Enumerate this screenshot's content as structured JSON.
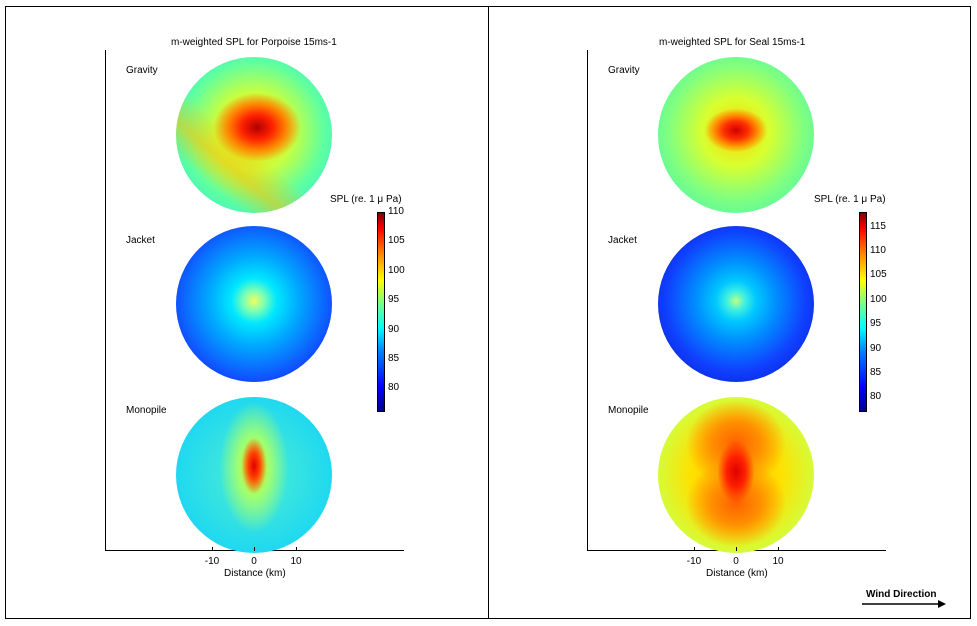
{
  "chart_data": [
    {
      "type": "heatmap",
      "title": "m-weighted SPL for Porpoise 15ms-1",
      "rows": [
        "Gravity",
        "Jacket",
        "Monopile"
      ],
      "xlabel": "Distance (km)",
      "xticks": [
        "-10",
        "0",
        "10"
      ],
      "colorbar": {
        "label": "SPL (re. 1 μ Pa)",
        "range": [
          76,
          110
        ],
        "ticks": [
          80,
          85,
          90,
          95,
          100,
          105,
          110
        ]
      },
      "peak_levels": {
        "Gravity": 108,
        "Jacket": 96,
        "Monopile": 106
      }
    },
    {
      "type": "heatmap",
      "title": "m-weighted SPL for Seal 15ms-1",
      "rows": [
        "Gravity",
        "Jacket",
        "Monopile"
      ],
      "xlabel": "Distance (km)",
      "xticks": [
        "-10",
        "0",
        "10"
      ],
      "colorbar": {
        "label": "SPL (re. 1 μ Pa)",
        "range": [
          77,
          118
        ],
        "ticks": [
          80,
          85,
          90,
          95,
          100,
          105,
          110,
          115
        ]
      },
      "peak_levels": {
        "Gravity": 110,
        "Jacket": 92,
        "Monopile": 112
      }
    }
  ],
  "annotation": {
    "wind_label": "Wind Direction"
  }
}
